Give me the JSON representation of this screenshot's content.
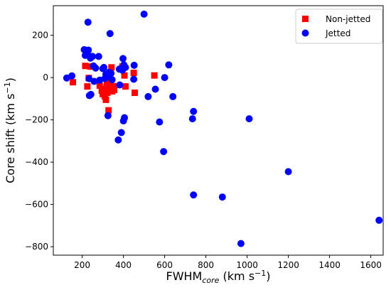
{
  "chart_data": {
    "type": "scatter",
    "title": "",
    "xlabel": {
      "main": "FWHM",
      "sub": "core",
      "unit": " (km s",
      "exp": "−1",
      "close": ")"
    },
    "ylabel": {
      "main": "Core shift (km s",
      "exp": "−1",
      "close": ")"
    },
    "xlim": [
      60,
      1660
    ],
    "ylim": [
      -840,
      340
    ],
    "xticks": [
      200,
      400,
      600,
      800,
      1000,
      1200,
      1400,
      1600
    ],
    "yticks": [
      -800,
      -600,
      -400,
      -200,
      0,
      200
    ],
    "grid": false,
    "legend_position": "top-right",
    "series": [
      {
        "name": "Non-jetted",
        "marker": "square",
        "color": "#ff0000",
        "points": [
          [
            155,
            -22
          ],
          [
            215,
            55
          ],
          [
            225,
            -42
          ],
          [
            232,
            -2
          ],
          [
            240,
            52
          ],
          [
            285,
            -38
          ],
          [
            295,
            -62
          ],
          [
            300,
            -78
          ],
          [
            305,
            -55
          ],
          [
            310,
            -88
          ],
          [
            315,
            -105
          ],
          [
            318,
            -48
          ],
          [
            320,
            -30
          ],
          [
            322,
            -72
          ],
          [
            325,
            -60
          ],
          [
            328,
            -155
          ],
          [
            330,
            -5
          ],
          [
            335,
            8
          ],
          [
            340,
            -45
          ],
          [
            342,
            48
          ],
          [
            345,
            -65
          ],
          [
            350,
            -40
          ],
          [
            355,
            -58
          ],
          [
            395,
            52
          ],
          [
            405,
            10
          ],
          [
            410,
            -42
          ],
          [
            450,
            22
          ],
          [
            455,
            -72
          ],
          [
            550,
            10
          ]
        ]
      },
      {
        "name": "Jetted",
        "marker": "circle",
        "color": "#0000ff",
        "points": [
          [
            125,
            -2
          ],
          [
            150,
            8
          ],
          [
            210,
            132
          ],
          [
            215,
            105
          ],
          [
            225,
            112
          ],
          [
            228,
            262
          ],
          [
            230,
            130
          ],
          [
            233,
            -5
          ],
          [
            235,
            -85
          ],
          [
            240,
            92
          ],
          [
            242,
            -80
          ],
          [
            250,
            100
          ],
          [
            255,
            55
          ],
          [
            258,
            -18
          ],
          [
            265,
            45
          ],
          [
            280,
            100
          ],
          [
            285,
            -12
          ],
          [
            300,
            42
          ],
          [
            305,
            48
          ],
          [
            310,
            -5
          ],
          [
            315,
            15
          ],
          [
            320,
            5
          ],
          [
            325,
            -180
          ],
          [
            330,
            25
          ],
          [
            335,
            208
          ],
          [
            340,
            20
          ],
          [
            345,
            -10
          ],
          [
            375,
            -295
          ],
          [
            380,
            40
          ],
          [
            382,
            -35
          ],
          [
            390,
            -260
          ],
          [
            395,
            35
          ],
          [
            398,
            90
          ],
          [
            400,
            -205
          ],
          [
            402,
            60
          ],
          [
            405,
            -190
          ],
          [
            410,
            48
          ],
          [
            450,
            -8
          ],
          [
            452,
            58
          ],
          [
            500,
            300
          ],
          [
            520,
            -90
          ],
          [
            555,
            -55
          ],
          [
            575,
            -210
          ],
          [
            595,
            -350
          ],
          [
            600,
            0
          ],
          [
            620,
            60
          ],
          [
            640,
            -90
          ],
          [
            735,
            -195
          ],
          [
            740,
            -160
          ],
          [
            740,
            -555
          ],
          [
            880,
            -565
          ],
          [
            970,
            -785
          ],
          [
            1010,
            -195
          ],
          [
            1200,
            -445
          ],
          [
            1640,
            -675
          ]
        ]
      }
    ]
  }
}
